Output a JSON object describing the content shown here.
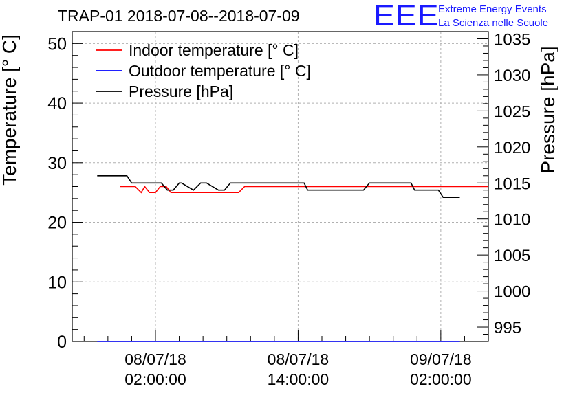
{
  "title": "TRAP-01 2018-07-08--2018-07-09",
  "logo": {
    "letters": "EEE",
    "line1": "Extreme Energy Events",
    "line2": "La Scienza nelle Scuole"
  },
  "colors": {
    "indoor": "#ff0000",
    "outdoor": "#0000ff",
    "pressure": "#000000",
    "logo": "#1a1aff",
    "grid": "#b0b0b0"
  },
  "chart_data": {
    "type": "line",
    "title": "TRAP-01 2018-07-08--2018-07-09",
    "xlabel": "",
    "ylabel_left": "Temperature [° C]",
    "ylabel_right": "Pressure [hPa]",
    "x_unit": "hours since 2018-07-08 00:00",
    "xlim": [
      -5.0,
      30.0
    ],
    "ylim_left": [
      0,
      52
    ],
    "ylim_right": [
      993,
      1036
    ],
    "x_ticks": [
      {
        "x": 2,
        "date": "08/07/18",
        "time": "02:00:00"
      },
      {
        "x": 14,
        "date": "08/07/18",
        "time": "14:00:00"
      },
      {
        "x": 26,
        "date": "09/07/18",
        "time": "02:00:00"
      }
    ],
    "y_ticks_left": [
      0,
      10,
      20,
      30,
      40,
      50
    ],
    "y_ticks_right": [
      995,
      1000,
      1005,
      1010,
      1015,
      1020,
      1025,
      1030,
      1035
    ],
    "grid": true,
    "legend_position": "top-left",
    "series": [
      {
        "name": "Indoor temperature [° C]",
        "axis": "left",
        "x": [
          -1,
          0.3,
          0.8,
          1.1,
          1.5,
          2.0,
          2.4,
          2.9,
          3.3,
          3.8,
          4.3,
          9.0,
          9.5,
          30
        ],
        "y": [
          26,
          26,
          25,
          26,
          25,
          25,
          26,
          26,
          25,
          25,
          25,
          25,
          26,
          26
        ]
      },
      {
        "name": "Outdoor temperature [° C]",
        "axis": "left",
        "x": [
          -2.9,
          27.6
        ],
        "y": [
          0,
          0
        ]
      },
      {
        "name": "Pressure [hPa]",
        "axis": "right",
        "x": [
          -2.9,
          -0.4,
          0.0,
          2.5,
          3.0,
          3.5,
          4.0,
          4.2,
          5.2,
          5.8,
          6.3,
          7.3,
          7.8,
          8.3,
          8.8,
          9.2,
          14.5,
          14.8,
          19.5,
          20.0,
          23.5,
          23.8,
          25.8,
          26.2,
          27.6
        ],
        "y": [
          1016.0,
          1016.0,
          1015.0,
          1015.0,
          1014.0,
          1014.0,
          1015.0,
          1015.0,
          1014.0,
          1015.0,
          1015.0,
          1014.0,
          1014.0,
          1015.0,
          1015.0,
          1015.0,
          1015.0,
          1014.0,
          1014.0,
          1015.0,
          1015.0,
          1014.0,
          1014.0,
          1013.0,
          1013.0
        ]
      }
    ]
  }
}
